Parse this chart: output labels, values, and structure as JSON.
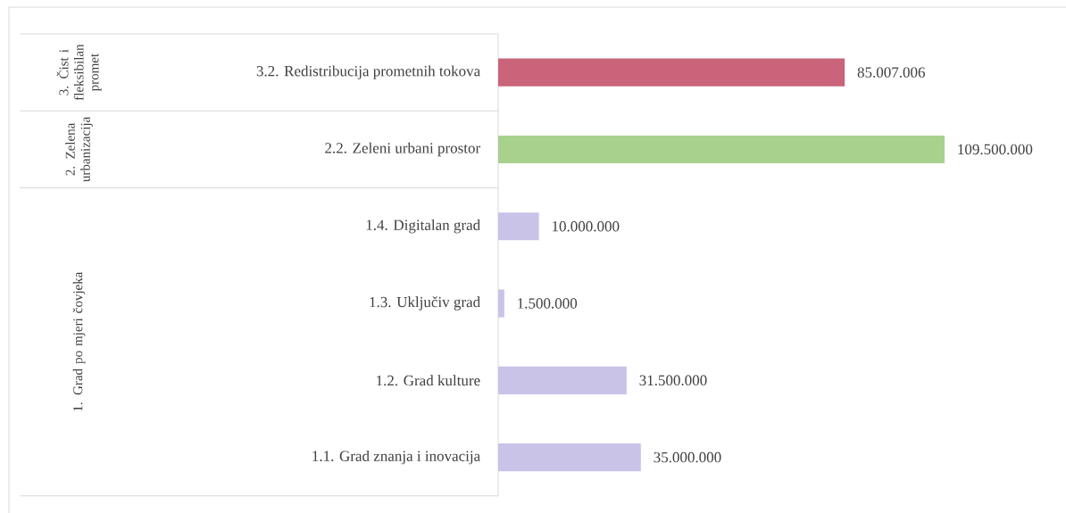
{
  "chart_data": {
    "type": "bar",
    "orientation": "horizontal",
    "categories": [
      "3.2. Redistribucija prometnih tokova",
      "2.2. Zeleni urbani prostor",
      "1.4. Digitalan grad",
      "1.3. Uključiv grad",
      "1.2. Grad kulture",
      "1.1. Grad znanja i inovacija"
    ],
    "values": [
      85007006,
      109500000,
      10000000,
      1500000,
      31500000,
      35000000
    ],
    "colors": [
      "#c9647a",
      "#a9d18e",
      "#c9c3e8",
      "#c9c3e8",
      "#c9c3e8",
      "#c9c3e8"
    ],
    "value_labels": [
      "85.007.006",
      "109.500.000",
      "10.000.000",
      "1.500.000",
      "31.500.000",
      "35.000.000"
    ],
    "annotations": [
      "3. Čist i fleksibilan promet",
      "2. Zelena urbanizacija",
      "1. Grad po mjeri čovjeka"
    ]
  }
}
